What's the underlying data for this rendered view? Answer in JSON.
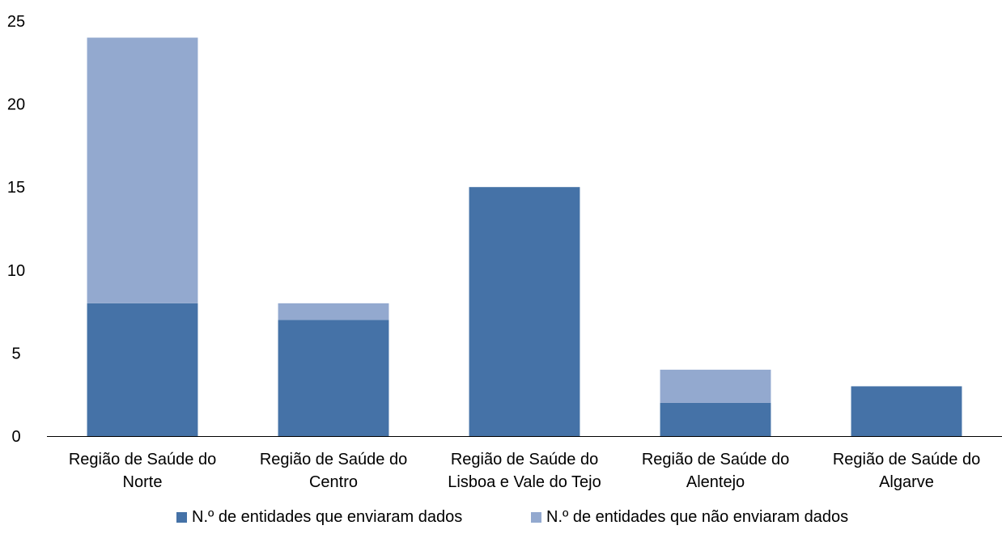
{
  "chart_data": {
    "type": "bar",
    "stacked": true,
    "categories": [
      [
        "Região de Saúde do",
        "Norte"
      ],
      [
        "Região de Saúde do",
        "Centro"
      ],
      [
        "Região de Saúde do",
        "Lisboa e Vale do Tejo"
      ],
      [
        "Região de Saúde do",
        "Alentejo"
      ],
      [
        "Região de Saúde do",
        "Algarve"
      ]
    ],
    "series": [
      {
        "name": "N.º de entidades que enviaram dados",
        "values": [
          8,
          7,
          15,
          2,
          3
        ],
        "color": "#4572a7"
      },
      {
        "name": "N.º de entidades que não enviaram dados",
        "values": [
          16,
          1,
          0,
          2,
          0
        ],
        "color": "#93a9cf"
      }
    ],
    "ylim": [
      0,
      25
    ],
    "yticks": [
      0,
      5,
      10,
      15,
      20,
      25
    ],
    "grid": false,
    "legend_position": "bottom"
  }
}
